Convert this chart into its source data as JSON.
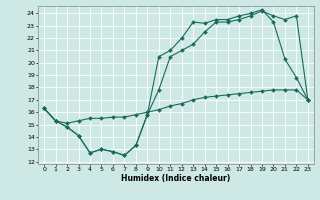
{
  "xlabel": "Humidex (Indice chaleur)",
  "bg_color": "#cde8e5",
  "grid_color": "#ffffff",
  "line_color": "#1a6b5a",
  "xlim": [
    -0.5,
    23.5
  ],
  "ylim": [
    11.8,
    24.6
  ],
  "yticks": [
    12,
    13,
    14,
    15,
    16,
    17,
    18,
    19,
    20,
    21,
    22,
    23,
    24
  ],
  "xticks": [
    0,
    1,
    2,
    3,
    4,
    5,
    6,
    7,
    8,
    9,
    10,
    11,
    12,
    13,
    14,
    15,
    16,
    17,
    18,
    19,
    20,
    21,
    22,
    23
  ],
  "series1_x": [
    0,
    1,
    2,
    3,
    4,
    5,
    6,
    7,
    8,
    9,
    10,
    11,
    12,
    13,
    14,
    15,
    16,
    17,
    18,
    19,
    20,
    21,
    22,
    23
  ],
  "series1_y": [
    16.3,
    15.3,
    14.8,
    14.1,
    12.7,
    13.0,
    12.8,
    12.5,
    13.3,
    15.8,
    17.8,
    20.5,
    21.0,
    21.5,
    22.5,
    23.3,
    23.3,
    23.5,
    23.8,
    24.2,
    23.8,
    23.5,
    23.8,
    17.0
  ],
  "series2_x": [
    0,
    1,
    2,
    3,
    4,
    5,
    6,
    7,
    8,
    9,
    10,
    11,
    12,
    13,
    14,
    15,
    16,
    17,
    18,
    19,
    20,
    21,
    22,
    23
  ],
  "series2_y": [
    16.3,
    15.3,
    14.8,
    14.1,
    12.7,
    13.0,
    12.8,
    12.5,
    13.3,
    15.8,
    20.5,
    21.0,
    22.0,
    23.3,
    23.2,
    23.5,
    23.5,
    23.8,
    24.0,
    24.3,
    23.3,
    20.3,
    18.8,
    17.0
  ],
  "series3_x": [
    0,
    1,
    2,
    3,
    4,
    5,
    6,
    7,
    8,
    9,
    10,
    11,
    12,
    13,
    14,
    15,
    16,
    17,
    18,
    19,
    20,
    21,
    22,
    23
  ],
  "series3_y": [
    16.3,
    15.3,
    15.1,
    15.3,
    15.5,
    15.5,
    15.6,
    15.6,
    15.8,
    16.0,
    16.2,
    16.5,
    16.7,
    17.0,
    17.2,
    17.3,
    17.4,
    17.5,
    17.6,
    17.7,
    17.8,
    17.8,
    17.8,
    17.0
  ]
}
